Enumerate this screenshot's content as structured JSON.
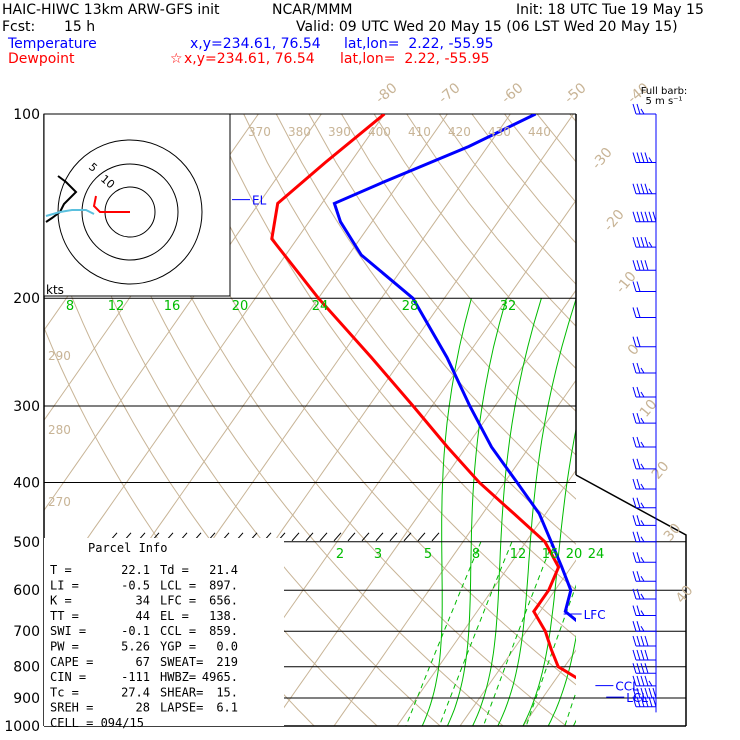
{
  "header": {
    "model": "HAIC-HIWC 13km ARW-GFS init",
    "org": "NCAR/MMM",
    "init": "Init: 18 UTC Tue 19 May 15",
    "fcst_label": "Fcst:",
    "fcst_value": "15 h",
    "valid": "Valid: 09 UTC Wed 20 May 15 (06 LST Wed 20 May 15)",
    "temperature_label": "Temperature",
    "temperature_xy": "x,y=234.61, 76.54",
    "temperature_latlon": "lat,lon=  2.22, -55.95",
    "dewpoint_label": "Dewpoint",
    "dewpoint_star": "☆",
    "dewpoint_xy": "x,y=234.61, 76.54",
    "dewpoint_latlon": "lat,lon=  2.22, -55.95"
  },
  "colors": {
    "temperature": "#0000ff",
    "dewpoint": "#ff0000",
    "isotherm": "#c8b496",
    "mixing_ratio": "#00bb00",
    "hodo_other": "#5bc0de"
  },
  "barb_legend": [
    "Full barb:",
    "5 m s⁻¹"
  ],
  "hodograph": {
    "unit_label": "kts",
    "ring_labels": [
      "5",
      "10"
    ]
  },
  "parcel_info": {
    "title": "Parcel Info",
    "rows": [
      [
        "T  =",
        "22.1",
        "Td =",
        "21.4"
      ],
      [
        "LI =",
        "-0.5",
        "LCL =",
        "897."
      ],
      [
        "K  =",
        "34",
        "LFC =",
        "656."
      ],
      [
        "TT =",
        "44",
        "EL =",
        "138."
      ],
      [
        "SWI =",
        "-0.1",
        "CCL =",
        "859."
      ],
      [
        "PW =",
        "5.26",
        "YGP =",
        "0.0"
      ],
      [
        "CAPE =",
        "67",
        "SWEAT=",
        "219"
      ],
      [
        "CIN =",
        "-111",
        "HWBZ=",
        "4965."
      ],
      [
        "Tc =",
        "27.4",
        "SHEAR=",
        "15."
      ],
      [
        "SREH =",
        "28",
        "LAPSE=",
        "6.1"
      ],
      [
        "CELL = 094/15",
        "",
        "",
        ""
      ]
    ]
  },
  "chart_data": {
    "type": "line",
    "title": "",
    "xlabel": "",
    "ylabel": "",
    "y_scale": "log (pressure, hPa)",
    "ylim": [
      1000,
      100
    ],
    "pressure_ticks": [
      "100",
      "200",
      "300",
      "400",
      "500",
      "600",
      "700",
      "800",
      "900",
      "1000"
    ],
    "isotherm_labels_top": [
      "-80",
      "-70",
      "-60",
      "-50",
      "-40"
    ],
    "isotherm_labels_right": [
      "-30",
      "-20",
      "-10",
      "0",
      "10",
      "20",
      "30",
      "40"
    ],
    "theta_labels": [
      "370",
      "380",
      "390",
      "400",
      "410",
      "420",
      "430",
      "440"
    ],
    "theta_labels_left": [
      "290",
      "280",
      "270"
    ],
    "moist_adiabat_labels": [
      "8",
      "12",
      "16",
      "20",
      "24",
      "28",
      "32"
    ],
    "mixing_ratio_labels": [
      "2",
      "3",
      "5",
      "8",
      "12",
      "16",
      "20",
      "24"
    ],
    "level_markers": [
      {
        "name": "EL",
        "pressure": 138,
        "temp": -75
      },
      {
        "name": "LFC",
        "pressure": 656,
        "temp": 4
      },
      {
        "name": "CCL",
        "pressure": 859,
        "temp": 17
      },
      {
        "name": "LCL",
        "pressure": 897,
        "temp": 20
      }
    ],
    "series": [
      {
        "name": "Temperature",
        "points": [
          [
            100,
            -56
          ],
          [
            113,
            -63
          ],
          [
            130,
            -73
          ],
          [
            140,
            -78
          ],
          [
            150,
            -75
          ],
          [
            170,
            -68
          ],
          [
            200,
            -55
          ],
          [
            250,
            -43
          ],
          [
            300,
            -34
          ],
          [
            350,
            -26
          ],
          [
            400,
            -18
          ],
          [
            450,
            -11
          ],
          [
            500,
            -6
          ],
          [
            550,
            -1.5
          ],
          [
            600,
            2.5
          ],
          [
            650,
            4
          ],
          [
            700,
            10
          ],
          [
            750,
            12
          ],
          [
            800,
            13
          ],
          [
            850,
            16.5
          ],
          [
            900,
            20
          ],
          [
            925,
            21.5
          ],
          [
            950,
            22.1
          ]
        ]
      },
      {
        "name": "Dewpoint",
        "points": [
          [
            100,
            -80
          ],
          [
            120,
            -84
          ],
          [
            140,
            -87
          ],
          [
            160,
            -84
          ],
          [
            200,
            -70
          ],
          [
            250,
            -55
          ],
          [
            300,
            -43
          ],
          [
            350,
            -33
          ],
          [
            400,
            -24
          ],
          [
            450,
            -15
          ],
          [
            500,
            -7
          ],
          [
            550,
            -2
          ],
          [
            600,
            -1
          ],
          [
            650,
            -1
          ],
          [
            700,
            3
          ],
          [
            750,
            6
          ],
          [
            800,
            9
          ],
          [
            850,
            15
          ],
          [
            900,
            17.5
          ],
          [
            925,
            20
          ],
          [
            950,
            21.4
          ]
        ]
      }
    ],
    "wind_barbs": [
      {
        "pressure": 100,
        "speed": 15
      },
      {
        "pressure": 120,
        "speed": 25
      },
      {
        "pressure": 135,
        "speed": 25
      },
      {
        "pressure": 150,
        "speed": 30
      },
      {
        "pressure": 165,
        "speed": 25
      },
      {
        "pressure": 180,
        "speed": 20
      },
      {
        "pressure": 195,
        "speed": 10
      },
      {
        "pressure": 215,
        "speed": 10
      },
      {
        "pressure": 240,
        "speed": 10
      },
      {
        "pressure": 265,
        "speed": 15
      },
      {
        "pressure": 290,
        "speed": 15
      },
      {
        "pressure": 320,
        "speed": 15
      },
      {
        "pressure": 350,
        "speed": 15
      },
      {
        "pressure": 380,
        "speed": 15
      },
      {
        "pressure": 410,
        "speed": 15
      },
      {
        "pressure": 440,
        "speed": 15
      },
      {
        "pressure": 470,
        "speed": 15
      },
      {
        "pressure": 500,
        "speed": 15
      },
      {
        "pressure": 540,
        "speed": 15
      },
      {
        "pressure": 580,
        "speed": 15
      },
      {
        "pressure": 620,
        "speed": 15
      },
      {
        "pressure": 660,
        "speed": 15
      },
      {
        "pressure": 700,
        "speed": 15
      },
      {
        "pressure": 740,
        "speed": 20
      },
      {
        "pressure": 780,
        "speed": 20
      },
      {
        "pressure": 820,
        "speed": 20
      },
      {
        "pressure": 860,
        "speed": 25
      },
      {
        "pressure": 900,
        "speed": 30
      },
      {
        "pressure": 930,
        "speed": 30
      }
    ]
  }
}
